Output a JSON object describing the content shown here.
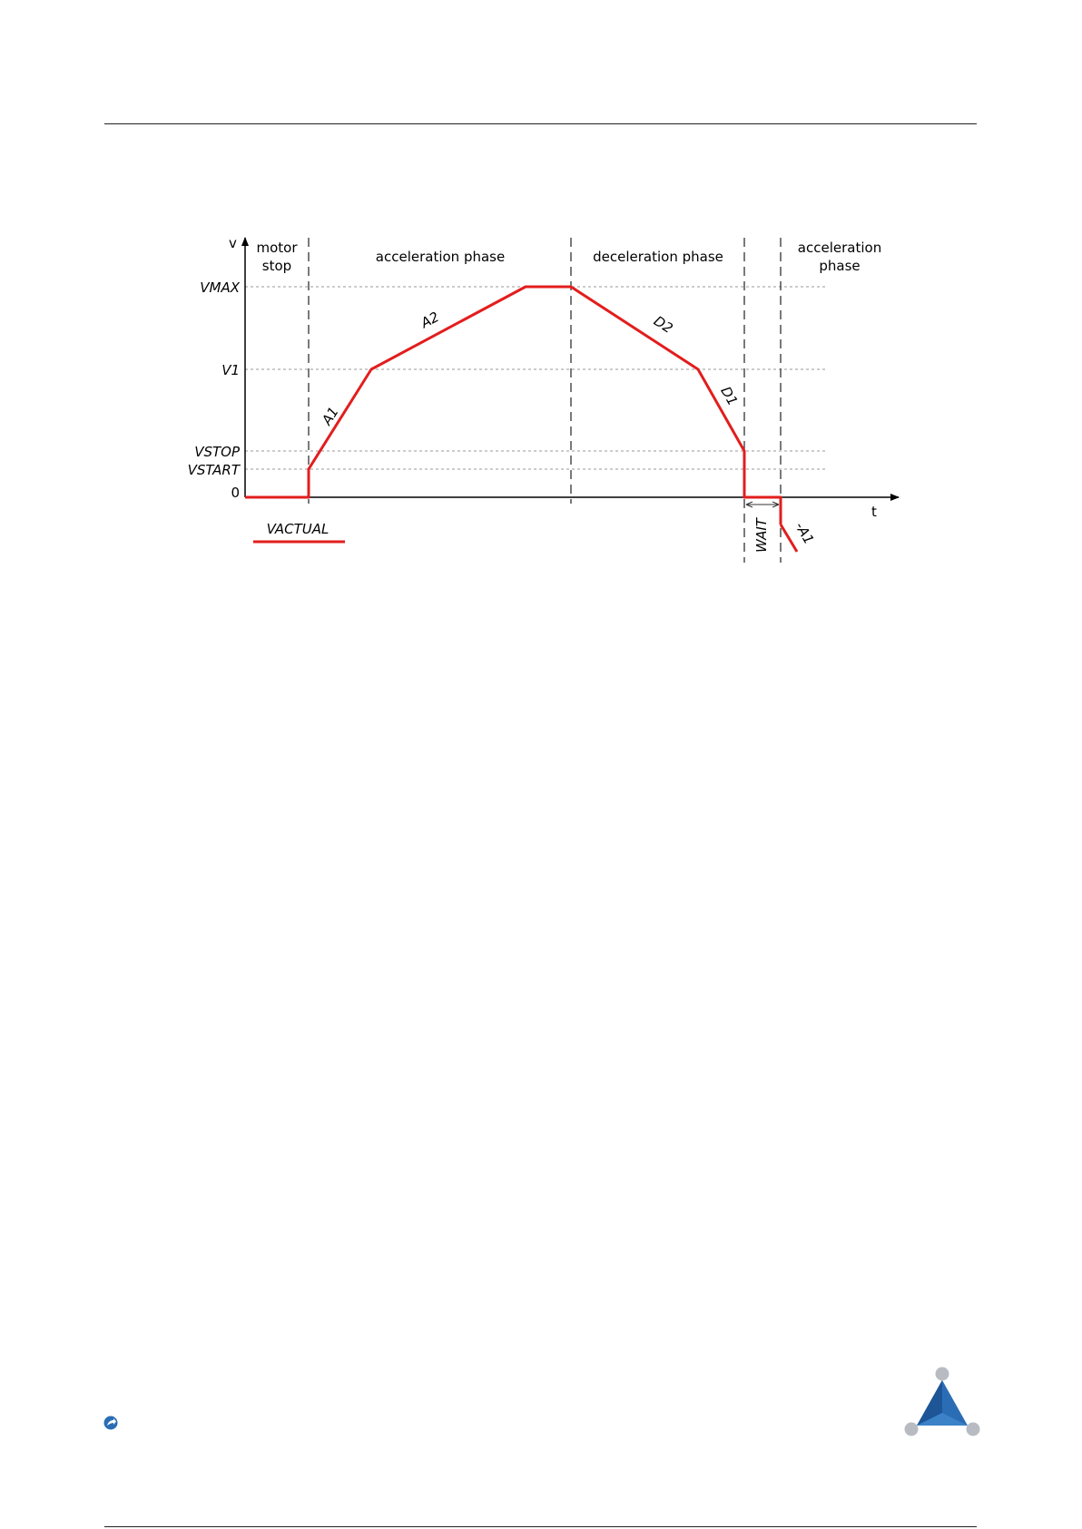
{
  "diagram": {
    "y_axis_label": "v",
    "x_axis_label": "t",
    "levels": {
      "vmax": "VMAX",
      "v1": "V1",
      "vstop": "VSTOP",
      "vstart": "VSTART",
      "zero": "0"
    },
    "phases": {
      "motor_stop_line1": "motor",
      "motor_stop_line2": "stop",
      "acceleration": "acceleration phase",
      "deceleration": "deceleration phase",
      "acceleration2_line1": "acceleration",
      "acceleration2_line2": "phase"
    },
    "segments": {
      "a1": "A1",
      "a2": "A2",
      "d2": "D2",
      "d1": "D1",
      "neg_a1": "-A1",
      "wait": "WAIT"
    },
    "legend": {
      "vactual": "VACTUAL"
    },
    "colors": {
      "curve": "#e31d1d",
      "grid": "#9a9a9a",
      "logo_blue": "#2a6db5",
      "logo_grey": "#b8bcc2"
    }
  }
}
